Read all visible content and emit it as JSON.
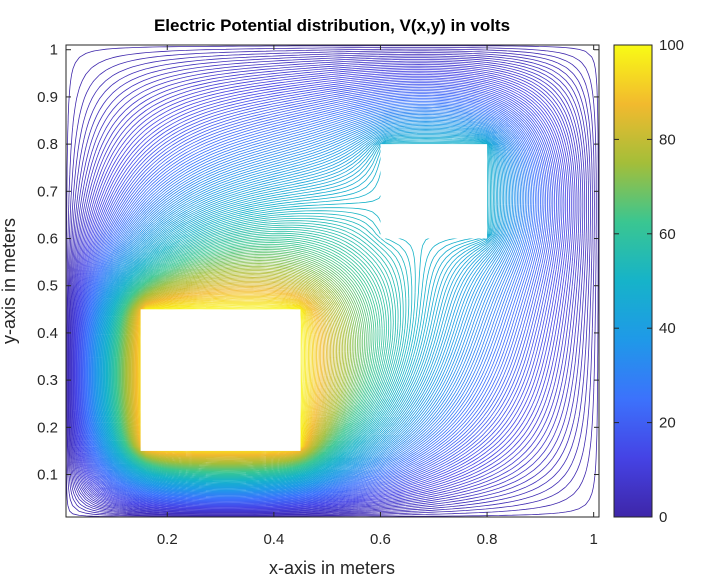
{
  "chart_data": {
    "type": "contour",
    "title": "Electric Potential distribution, V(x,y) in volts",
    "xlabel": "x-axis in meters",
    "ylabel": "y-axis in meters",
    "xlim": [
      0.01,
      1.01
    ],
    "ylim": [
      0.01,
      1.01
    ],
    "x_ticks": [
      0.2,
      0.4,
      0.6,
      0.8,
      1
    ],
    "x_tick_labels": [
      "0.2",
      "0.4",
      "0.6",
      "0.8",
      "1"
    ],
    "y_ticks": [
      0.1,
      0.2,
      0.3,
      0.4,
      0.5,
      0.6,
      0.7,
      0.8,
      0.9,
      1
    ],
    "y_tick_labels": [
      "0.1",
      "0.2",
      "0.3",
      "0.4",
      "0.5",
      "0.6",
      "0.7",
      "0.8",
      "0.9",
      "1"
    ],
    "colorbar": {
      "range": [
        0,
        100
      ],
      "ticks": [
        0,
        20,
        40,
        60,
        80,
        100
      ],
      "tick_labels": [
        "0",
        "20",
        "40",
        "60",
        "80",
        "100"
      ],
      "colormap": "parula"
    },
    "conductors": [
      {
        "x": [
          0.15,
          0.45
        ],
        "y": [
          0.15,
          0.45
        ],
        "potential": 100
      },
      {
        "x": [
          0.6,
          0.8
        ],
        "y": [
          0.6,
          0.8
        ],
        "potential": 50
      }
    ],
    "boundary_potential": 0,
    "grid": false
  }
}
